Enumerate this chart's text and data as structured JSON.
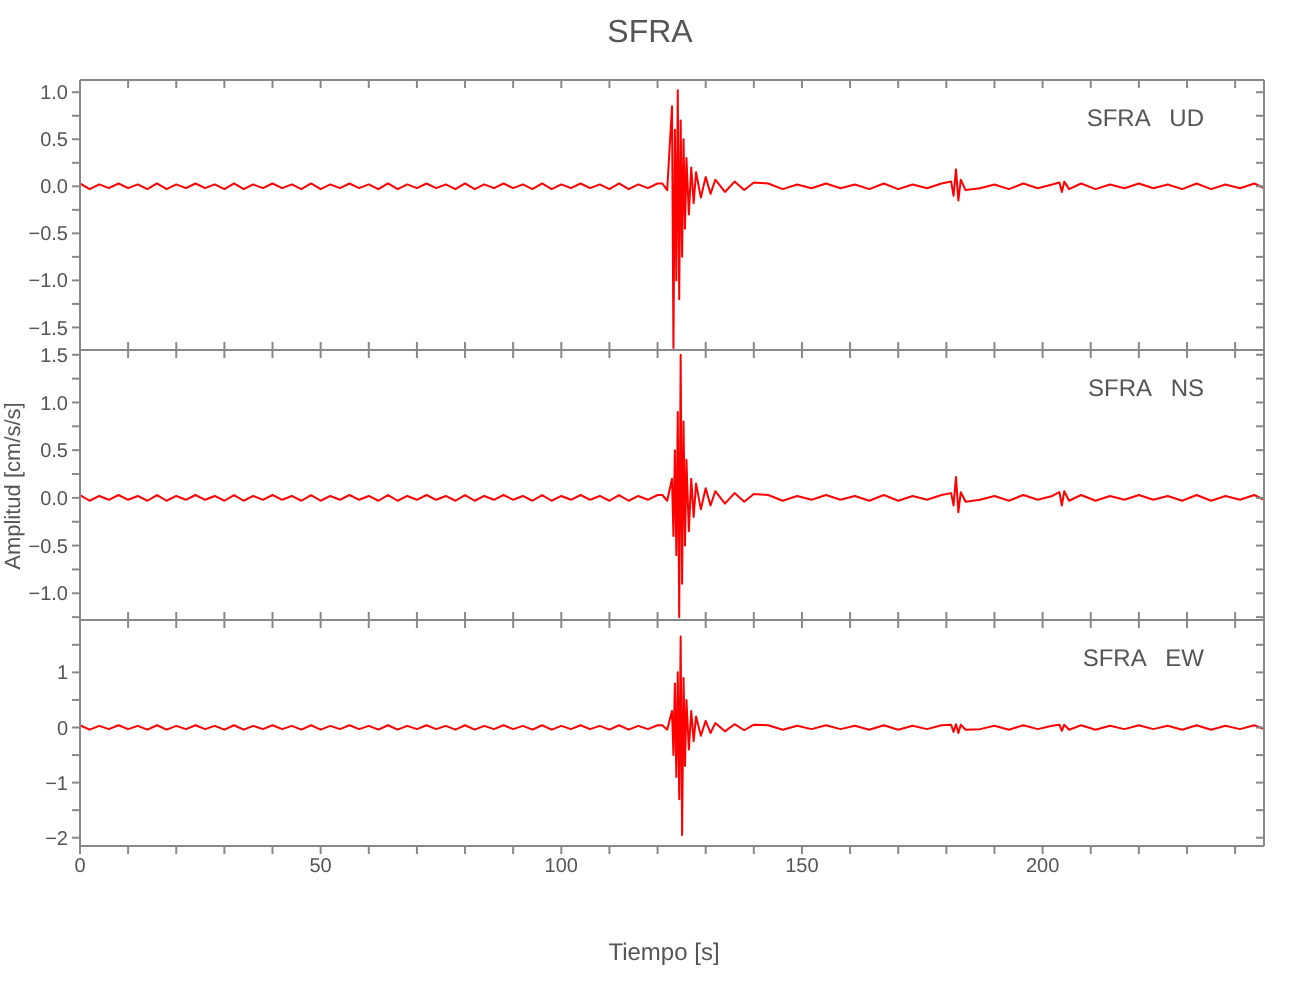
{
  "chart_data": [
    {
      "type": "line",
      "title": "SFRA",
      "annotations": [
        "SFRA   UD"
      ],
      "tick_labels": "y",
      "xlim": [
        0,
        246
      ],
      "xticks": [
        0,
        {
          "value": 10,
          "label": null
        },
        {
          "value": 20,
          "label": null
        },
        {
          "value": 30,
          "label": null
        },
        {
          "value": 40,
          "label": null
        },
        50,
        {
          "value": 60,
          "label": null
        },
        {
          "value": 70,
          "label": null
        },
        {
          "value": 80,
          "label": null
        },
        {
          "value": 90,
          "label": null
        },
        100,
        {
          "value": 110,
          "label": null
        },
        {
          "value": 120,
          "label": null
        },
        {
          "value": 130,
          "label": null
        },
        {
          "value": 140,
          "label": null
        },
        150,
        {
          "value": 160,
          "label": null
        },
        {
          "value": 170,
          "label": null
        },
        {
          "value": 180,
          "label": null
        },
        {
          "value": 190,
          "label": null
        },
        200,
        {
          "value": 210,
          "label": null
        },
        {
          "value": 220,
          "label": null
        },
        {
          "value": 230,
          "label": null
        },
        {
          "value": 240,
          "label": null
        }
      ],
      "ylim": [
        -1.74,
        1.13
      ],
      "yticks": [
        {
          "value": -1.5,
          "label": "−1.5"
        },
        {
          "value": -1.25,
          "label": null
        },
        {
          "value": -1.0,
          "label": "−1.0"
        },
        {
          "value": -0.75,
          "label": null
        },
        {
          "value": -0.5,
          "label": "−0.5"
        },
        {
          "value": -0.25,
          "label": null
        },
        {
          "value": 0,
          "label": "0.0"
        },
        {
          "value": 0.25,
          "label": null
        },
        0.5,
        {
          "value": 0.75,
          "label": null
        },
        {
          "value": 1,
          "label": "1.0"
        }
      ],
      "x": [
        0,
        2,
        4,
        6,
        8,
        10,
        12,
        14,
        16,
        18,
        20,
        22,
        24,
        26,
        28,
        30,
        32,
        34,
        36,
        38,
        40,
        42,
        44,
        46,
        48,
        50,
        52,
        54,
        56,
        58,
        60,
        62,
        64,
        66,
        68,
        70,
        72,
        74,
        76,
        78,
        80,
        82,
        84,
        86,
        88,
        90,
        92,
        94,
        96,
        98,
        100,
        102,
        104,
        106,
        108,
        110,
        112,
        114,
        116,
        118,
        120,
        121,
        122,
        123,
        123.3,
        123.6,
        123.9,
        124.2,
        124.5,
        124.8,
        125.1,
        125.4,
        125.7,
        126,
        126.5,
        127,
        127.5,
        128,
        129,
        130,
        131,
        132,
        134,
        136,
        138,
        140,
        143,
        146,
        149,
        152,
        155,
        158,
        161,
        164,
        167,
        170,
        173,
        176,
        179,
        181,
        181.5,
        182,
        182.5,
        183,
        184,
        187,
        190,
        193,
        196,
        199,
        202,
        203.5,
        204,
        204.5,
        205.5,
        208,
        211,
        214,
        217,
        220,
        223,
        226,
        229,
        232,
        235,
        238,
        241,
        244,
        246
      ],
      "series": [
        {
          "color": "#ff0000",
          "values": [
            0.03,
            -0.03,
            0.02,
            -0.02,
            0.03,
            -0.02,
            0.02,
            -0.03,
            0.03,
            -0.03,
            0.02,
            -0.02,
            0.03,
            -0.02,
            0.02,
            -0.03,
            0.03,
            -0.03,
            0.02,
            -0.02,
            0.03,
            -0.02,
            0.02,
            -0.03,
            0.03,
            -0.03,
            0.02,
            -0.02,
            0.03,
            -0.02,
            0.02,
            -0.03,
            0.03,
            -0.03,
            0.02,
            -0.02,
            0.03,
            -0.02,
            0.02,
            -0.03,
            0.03,
            -0.03,
            0.02,
            -0.02,
            0.03,
            -0.02,
            0.02,
            -0.03,
            0.03,
            -0.03,
            0.02,
            -0.02,
            0.03,
            -0.02,
            0.02,
            -0.03,
            0.03,
            -0.03,
            0.02,
            -0.02,
            0.03,
            0.03,
            -0.04,
            0.85,
            -1.72,
            0.6,
            -1.0,
            1.02,
            -1.2,
            0.7,
            -0.75,
            0.5,
            -0.45,
            0.3,
            -0.3,
            0.2,
            -0.18,
            0.15,
            -0.12,
            0.1,
            -0.08,
            0.07,
            -0.06,
            0.05,
            -0.04,
            0.04,
            0.03,
            -0.03,
            0.02,
            -0.02,
            0.03,
            -0.02,
            0.02,
            -0.03,
            0.03,
            -0.03,
            0.02,
            -0.02,
            0.03,
            0.05,
            -0.1,
            0.18,
            -0.15,
            0.07,
            -0.04,
            -0.02,
            0.02,
            -0.03,
            0.03,
            -0.02,
            0.02,
            0.04,
            -0.06,
            0.05,
            -0.03,
            0.03,
            -0.03,
            0.02,
            -0.02,
            0.03,
            -0.02,
            0.02,
            -0.03,
            0.03,
            -0.03,
            0.02,
            -0.02,
            0.03,
            -0.02
          ]
        }
      ]
    },
    {
      "type": "line",
      "ylabel": "Amplitud [cm/s/s]",
      "annotations": [
        "SFRA   NS"
      ],
      "tick_labels": "y",
      "xlim": [
        0,
        246
      ],
      "xticks": [
        0,
        {
          "value": 10,
          "label": null
        },
        {
          "value": 20,
          "label": null
        },
        {
          "value": 30,
          "label": null
        },
        {
          "value": 40,
          "label": null
        },
        50,
        {
          "value": 60,
          "label": null
        },
        {
          "value": 70,
          "label": null
        },
        {
          "value": 80,
          "label": null
        },
        {
          "value": 90,
          "label": null
        },
        100,
        {
          "value": 110,
          "label": null
        },
        {
          "value": 120,
          "label": null
        },
        {
          "value": 130,
          "label": null
        },
        {
          "value": 140,
          "label": null
        },
        150,
        {
          "value": 160,
          "label": null
        },
        {
          "value": 170,
          "label": null
        },
        {
          "value": 180,
          "label": null
        },
        {
          "value": 190,
          "label": null
        },
        200,
        {
          "value": 210,
          "label": null
        },
        {
          "value": 220,
          "label": null
        },
        {
          "value": 230,
          "label": null
        },
        {
          "value": 240,
          "label": null
        }
      ],
      "ylim": [
        -1.28,
        1.55
      ],
      "yticks": [
        {
          "value": -1.25,
          "label": null
        },
        {
          "value": -1.0,
          "label": "−1.0"
        },
        {
          "value": -0.75,
          "label": null
        },
        {
          "value": -0.5,
          "label": "−0.5"
        },
        {
          "value": -0.25,
          "label": null
        },
        {
          "value": 0,
          "label": "0.0"
        },
        {
          "value": 0.25,
          "label": null
        },
        0.5,
        {
          "value": 0.75,
          "label": null
        },
        {
          "value": 1,
          "label": "1.0"
        },
        {
          "value": 1.25,
          "label": null
        },
        1.5
      ],
      "x": [
        0,
        2,
        4,
        6,
        8,
        10,
        12,
        14,
        16,
        18,
        20,
        22,
        24,
        26,
        28,
        30,
        32,
        34,
        36,
        38,
        40,
        42,
        44,
        46,
        48,
        50,
        52,
        54,
        56,
        58,
        60,
        62,
        64,
        66,
        68,
        70,
        72,
        74,
        76,
        78,
        80,
        82,
        84,
        86,
        88,
        90,
        92,
        94,
        96,
        98,
        100,
        102,
        104,
        106,
        108,
        110,
        112,
        114,
        116,
        118,
        120,
        121,
        122,
        123,
        123.3,
        123.6,
        123.9,
        124.2,
        124.5,
        124.8,
        125.1,
        125.4,
        125.7,
        126,
        126.5,
        127,
        127.5,
        128,
        129,
        130,
        131,
        132,
        134,
        136,
        138,
        140,
        143,
        146,
        149,
        152,
        155,
        158,
        161,
        164,
        167,
        170,
        173,
        176,
        179,
        181,
        181.5,
        182,
        182.5,
        183,
        184,
        187,
        190,
        193,
        196,
        199,
        202,
        203.5,
        204,
        204.5,
        205.5,
        208,
        211,
        214,
        217,
        220,
        223,
        226,
        229,
        232,
        235,
        238,
        241,
        244,
        246
      ],
      "series": [
        {
          "color": "#ff0000",
          "values": [
            0.03,
            -0.03,
            0.02,
            -0.02,
            0.03,
            -0.02,
            0.02,
            -0.03,
            0.03,
            -0.03,
            0.02,
            -0.02,
            0.03,
            -0.02,
            0.02,
            -0.03,
            0.03,
            -0.03,
            0.02,
            -0.02,
            0.03,
            -0.02,
            0.02,
            -0.03,
            0.03,
            -0.03,
            0.02,
            -0.02,
            0.03,
            -0.02,
            0.02,
            -0.03,
            0.03,
            -0.03,
            0.02,
            -0.02,
            0.03,
            -0.02,
            0.02,
            -0.03,
            0.03,
            -0.03,
            0.02,
            -0.02,
            0.03,
            -0.02,
            0.02,
            -0.03,
            0.03,
            -0.03,
            0.02,
            -0.02,
            0.03,
            -0.02,
            0.02,
            -0.03,
            0.03,
            -0.03,
            0.02,
            -0.02,
            0.03,
            0.03,
            -0.03,
            0.2,
            -0.4,
            0.5,
            -0.6,
            0.9,
            -1.25,
            1.5,
            -0.9,
            0.8,
            -0.5,
            0.4,
            -0.35,
            0.2,
            -0.2,
            0.15,
            -0.12,
            0.1,
            -0.08,
            0.07,
            -0.06,
            0.05,
            -0.04,
            0.04,
            0.03,
            -0.03,
            0.02,
            -0.02,
            0.03,
            -0.02,
            0.02,
            -0.03,
            0.03,
            -0.03,
            0.02,
            -0.02,
            0.03,
            0.05,
            -0.08,
            0.22,
            -0.15,
            0.06,
            -0.04,
            -0.02,
            0.02,
            -0.03,
            0.03,
            -0.02,
            0.02,
            0.06,
            -0.08,
            0.07,
            -0.03,
            0.03,
            -0.03,
            0.02,
            -0.02,
            0.03,
            -0.02,
            0.02,
            -0.03,
            0.03,
            -0.03,
            0.02,
            -0.02,
            0.03,
            -0.02
          ]
        }
      ]
    },
    {
      "type": "line",
      "xlabel": "Tiempo [s]",
      "annotations": [
        "SFRA   EW"
      ],
      "xlim": [
        0,
        246
      ],
      "xticks": [
        0,
        {
          "value": 10,
          "label": null
        },
        {
          "value": 20,
          "label": null
        },
        {
          "value": 30,
          "label": null
        },
        {
          "value": 40,
          "label": null
        },
        50,
        {
          "value": 60,
          "label": null
        },
        {
          "value": 70,
          "label": null
        },
        {
          "value": 80,
          "label": null
        },
        {
          "value": 90,
          "label": null
        },
        100,
        {
          "value": 110,
          "label": null
        },
        {
          "value": 120,
          "label": null
        },
        {
          "value": 130,
          "label": null
        },
        {
          "value": 140,
          "label": null
        },
        150,
        {
          "value": 160,
          "label": null
        },
        {
          "value": 170,
          "label": null
        },
        {
          "value": 180,
          "label": null
        },
        {
          "value": 190,
          "label": null
        },
        200,
        {
          "value": 210,
          "label": null
        },
        {
          "value": 220,
          "label": null
        },
        {
          "value": 230,
          "label": null
        },
        {
          "value": 240,
          "label": null
        }
      ],
      "ylim": [
        -2.15,
        1.95
      ],
      "yticks": [
        {
          "value": -2,
          "label": "−2"
        },
        {
          "value": -1.5,
          "label": null
        },
        {
          "value": -1,
          "label": "−1"
        },
        {
          "value": -0.5,
          "label": null
        },
        0,
        {
          "value": 0.5,
          "label": null
        },
        1,
        {
          "value": 1.5,
          "label": null
        }
      ],
      "x": [
        0,
        2,
        4,
        6,
        8,
        10,
        12,
        14,
        16,
        18,
        20,
        22,
        24,
        26,
        28,
        30,
        32,
        34,
        36,
        38,
        40,
        42,
        44,
        46,
        48,
        50,
        52,
        54,
        56,
        58,
        60,
        62,
        64,
        66,
        68,
        70,
        72,
        74,
        76,
        78,
        80,
        82,
        84,
        86,
        88,
        90,
        92,
        94,
        96,
        98,
        100,
        102,
        104,
        106,
        108,
        110,
        112,
        114,
        116,
        118,
        120,
        121,
        122,
        123,
        123.3,
        123.6,
        123.9,
        124.2,
        124.5,
        124.8,
        125.1,
        125.4,
        125.7,
        126,
        126.5,
        127,
        127.5,
        128,
        129,
        130,
        131,
        132,
        134,
        136,
        138,
        140,
        143,
        146,
        149,
        152,
        155,
        158,
        161,
        164,
        167,
        170,
        173,
        176,
        179,
        181,
        181.5,
        182,
        182.5,
        183,
        184,
        187,
        190,
        193,
        196,
        199,
        202,
        203.5,
        204,
        204.5,
        205.5,
        208,
        211,
        214,
        217,
        220,
        223,
        226,
        229,
        232,
        235,
        238,
        241,
        244,
        246
      ],
      "series": [
        {
          "color": "#ff0000",
          "values": [
            0.04,
            -0.04,
            0.03,
            -0.03,
            0.04,
            -0.03,
            0.03,
            -0.04,
            0.04,
            -0.04,
            0.03,
            -0.03,
            0.04,
            -0.03,
            0.03,
            -0.04,
            0.04,
            -0.04,
            0.03,
            -0.03,
            0.04,
            -0.03,
            0.03,
            -0.04,
            0.04,
            -0.04,
            0.03,
            -0.03,
            0.04,
            -0.03,
            0.03,
            -0.04,
            0.04,
            -0.04,
            0.03,
            -0.03,
            0.04,
            -0.03,
            0.03,
            -0.04,
            0.04,
            -0.04,
            0.03,
            -0.03,
            0.04,
            -0.03,
            0.03,
            -0.04,
            0.04,
            -0.04,
            0.03,
            -0.03,
            0.04,
            -0.03,
            0.03,
            -0.04,
            0.04,
            -0.04,
            0.03,
            -0.03,
            0.04,
            0.04,
            -0.04,
            0.3,
            -0.5,
            0.8,
            -0.9,
            1.0,
            -1.3,
            1.65,
            -1.95,
            0.9,
            -0.7,
            0.5,
            -0.4,
            0.3,
            -0.25,
            0.2,
            -0.15,
            0.12,
            -0.1,
            0.08,
            -0.07,
            0.06,
            -0.05,
            0.05,
            0.04,
            -0.04,
            0.03,
            -0.03,
            0.04,
            -0.03,
            0.03,
            -0.04,
            0.04,
            -0.04,
            0.03,
            -0.03,
            0.04,
            0.05,
            -0.08,
            0.06,
            -0.1,
            0.05,
            -0.04,
            -0.03,
            0.03,
            -0.04,
            0.04,
            -0.03,
            0.03,
            0.05,
            -0.06,
            0.05,
            -0.04,
            0.04,
            -0.04,
            0.03,
            -0.03,
            0.04,
            -0.03,
            0.03,
            -0.04,
            0.04,
            -0.04,
            0.03,
            -0.03,
            0.04,
            -0.03
          ]
        }
      ]
    }
  ]
}
